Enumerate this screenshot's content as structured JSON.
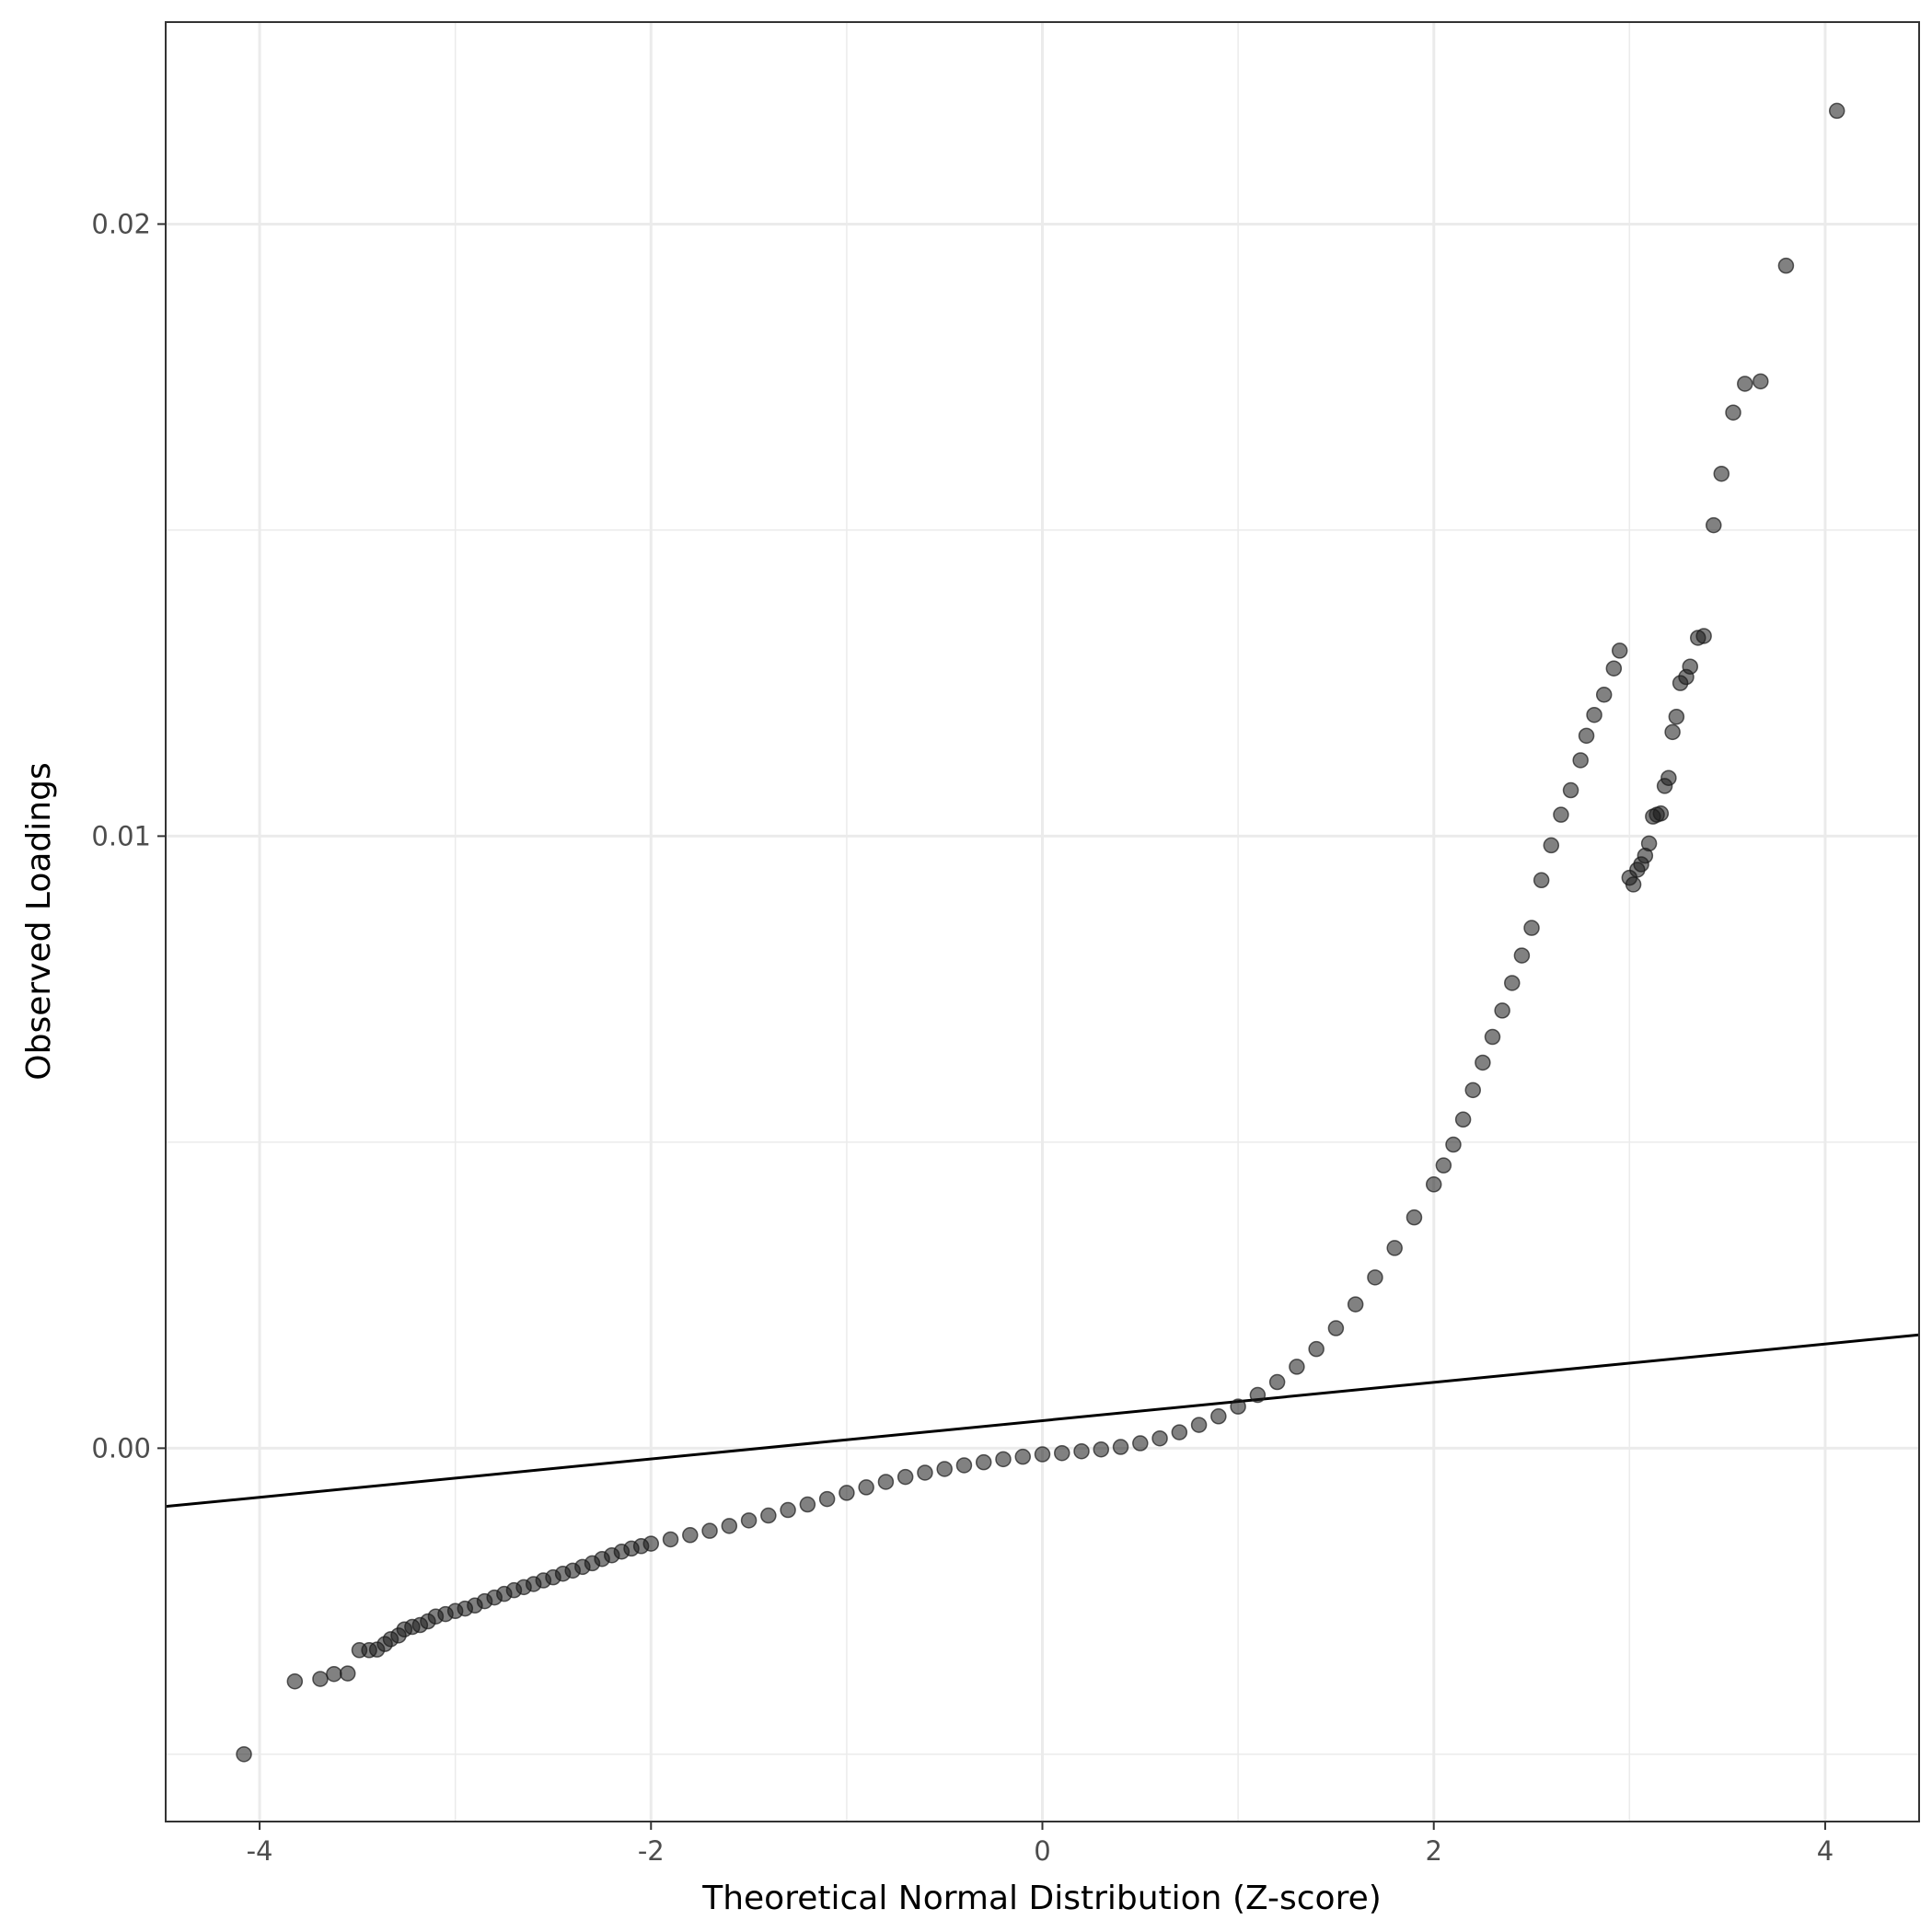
{
  "chart_data": {
    "type": "scatter",
    "title": "",
    "xlabel": "Theoretical Normal Distribution (Z-score)",
    "ylabel": "Observed Loadings",
    "xlim": [
      -4.48,
      4.48
    ],
    "ylim": [
      -0.0061,
      0.0233
    ],
    "x_ticks": [
      -4,
      -2,
      0,
      2,
      4
    ],
    "x_tick_labels": [
      "-4",
      "-2",
      "0",
      "2",
      "4"
    ],
    "y_ticks": [
      0.0,
      0.01,
      0.02
    ],
    "y_tick_labels": [
      "0.00",
      "0.01",
      "0.02"
    ],
    "grid": true,
    "reference_line": {
      "intercept": 0.00045,
      "slope": 0.000313
    },
    "point_color": "#1a1a1a",
    "line_color": "#000000",
    "series": [
      {
        "values": [
          [
            -4.08,
            -0.005
          ],
          [
            -3.82,
            -0.00381
          ],
          [
            -3.69,
            -0.00377
          ],
          [
            -3.62,
            -0.00369
          ],
          [
            -3.55,
            -0.00368
          ],
          [
            -3.49,
            -0.0033
          ],
          [
            -3.44,
            -0.0033
          ],
          [
            -3.4,
            -0.00329
          ],
          [
            -3.36,
            -0.0032
          ],
          [
            -3.33,
            -0.00312
          ],
          [
            -3.29,
            -0.00306
          ],
          [
            -3.26,
            -0.00296
          ],
          [
            -3.22,
            -0.00292
          ],
          [
            -3.18,
            -0.00289
          ],
          [
            -3.14,
            -0.00283
          ],
          [
            -3.1,
            -0.00275
          ],
          [
            -3.05,
            -0.00271
          ],
          [
            -3.0,
            -0.00266
          ],
          [
            -2.95,
            -0.00262
          ],
          [
            -2.9,
            -0.00257
          ],
          [
            -2.85,
            -0.0025
          ],
          [
            -2.8,
            -0.00244
          ],
          [
            -2.75,
            -0.00238
          ],
          [
            -2.7,
            -0.00232
          ],
          [
            -2.65,
            -0.00227
          ],
          [
            -2.6,
            -0.00222
          ],
          [
            -2.55,
            -0.00216
          ],
          [
            -2.5,
            -0.00211
          ],
          [
            -2.45,
            -0.00205
          ],
          [
            -2.4,
            -0.002
          ],
          [
            -2.35,
            -0.00194
          ],
          [
            -2.3,
            -0.00188
          ],
          [
            -2.25,
            -0.00181
          ],
          [
            -2.2,
            -0.00175
          ],
          [
            -2.15,
            -0.00169
          ],
          [
            -2.1,
            -0.00164
          ],
          [
            -2.05,
            -0.0016
          ],
          [
            -2.0,
            -0.00156
          ],
          [
            -1.9,
            -0.00149
          ],
          [
            -1.8,
            -0.00142
          ],
          [
            -1.7,
            -0.00135
          ],
          [
            -1.6,
            -0.00127
          ],
          [
            -1.5,
            -0.00118
          ],
          [
            -1.4,
            -0.0011
          ],
          [
            -1.3,
            -0.00101
          ],
          [
            -1.2,
            -0.00092
          ],
          [
            -1.1,
            -0.00083
          ],
          [
            -1.0,
            -0.00073
          ],
          [
            -0.9,
            -0.00064
          ],
          [
            -0.8,
            -0.00055
          ],
          [
            -0.7,
            -0.00047
          ],
          [
            -0.6,
            -0.0004
          ],
          [
            -0.5,
            -0.00034
          ],
          [
            -0.4,
            -0.00028
          ],
          [
            -0.3,
            -0.00023
          ],
          [
            -0.2,
            -0.00018
          ],
          [
            -0.1,
            -0.00014
          ],
          [
            0.0,
            -0.0001
          ],
          [
            0.1,
            -8e-05
          ],
          [
            0.2,
            -5e-05
          ],
          [
            0.3,
            -2e-05
          ],
          [
            0.4,
            2e-05
          ],
          [
            0.5,
            8e-05
          ],
          [
            0.6,
            0.00016
          ],
          [
            0.7,
            0.00026
          ],
          [
            0.8,
            0.00038
          ],
          [
            0.9,
            0.00052
          ],
          [
            1.0,
            0.00068
          ],
          [
            1.1,
            0.00087
          ],
          [
            1.2,
            0.00108
          ],
          [
            1.3,
            0.00133
          ],
          [
            1.4,
            0.00162
          ],
          [
            1.5,
            0.00196
          ],
          [
            1.6,
            0.00235
          ],
          [
            1.7,
            0.00279
          ],
          [
            1.8,
            0.00327
          ],
          [
            1.9,
            0.00377
          ],
          [
            2.0,
            0.00431
          ],
          [
            2.05,
            0.00462
          ],
          [
            2.1,
            0.00496
          ],
          [
            2.15,
            0.00537
          ],
          [
            2.2,
            0.00585
          ],
          [
            2.25,
            0.0063
          ],
          [
            2.3,
            0.00672
          ],
          [
            2.35,
            0.00715
          ],
          [
            2.4,
            0.0076
          ],
          [
            2.45,
            0.00805
          ],
          [
            2.5,
            0.0085
          ],
          [
            2.55,
            0.00928
          ],
          [
            2.6,
            0.00985
          ],
          [
            2.65,
            0.01035
          ],
          [
            2.7,
            0.01075
          ],
          [
            2.75,
            0.01124
          ],
          [
            2.78,
            0.01164
          ],
          [
            2.82,
            0.01198
          ],
          [
            2.87,
            0.01231
          ],
          [
            2.92,
            0.01274
          ],
          [
            2.95,
            0.01303
          ],
          [
            3.0,
            0.00932
          ],
          [
            3.02,
            0.00921
          ],
          [
            3.04,
            0.00945
          ],
          [
            3.06,
            0.00954
          ],
          [
            3.08,
            0.00968
          ],
          [
            3.1,
            0.00988
          ],
          [
            3.12,
            0.01032
          ],
          [
            3.14,
            0.01035
          ],
          [
            3.16,
            0.01037
          ],
          [
            3.18,
            0.01082
          ],
          [
            3.2,
            0.01095
          ],
          [
            3.22,
            0.0117
          ],
          [
            3.24,
            0.01195
          ],
          [
            3.26,
            0.0125
          ],
          [
            3.29,
            0.0126
          ],
          [
            3.31,
            0.01277
          ],
          [
            3.35,
            0.01324
          ],
          [
            3.38,
            0.01327
          ],
          [
            3.43,
            0.01508
          ],
          [
            3.47,
            0.01592
          ],
          [
            3.53,
            0.01692
          ],
          [
            3.59,
            0.01739
          ],
          [
            3.67,
            0.01743
          ],
          [
            3.8,
            0.01932
          ],
          [
            4.06,
            0.02185
          ]
        ]
      }
    ]
  }
}
